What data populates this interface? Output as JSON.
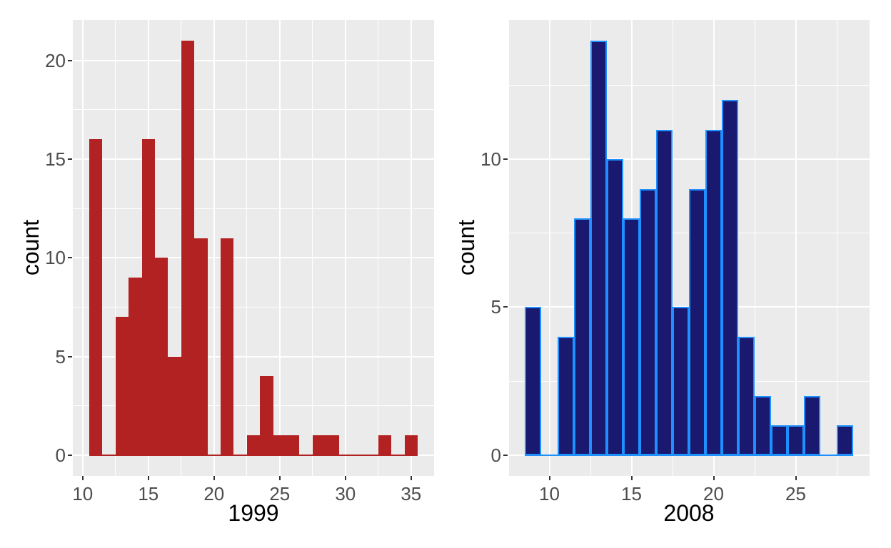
{
  "figure": {
    "background": "#FFFFFF",
    "panel_background": "#EBEBEB",
    "grid_color": "#FFFFFF",
    "tick_mark_color": "#333333",
    "tick_label_color": "#4D4D4D",
    "axis_title_color": "#000000"
  },
  "chart_data": [
    {
      "type": "bar",
      "subtype": "histogram",
      "title": "",
      "xlabel": "1999",
      "ylabel": "count",
      "bar_fill": "#B22222",
      "bar_stroke": null,
      "binwidth": 1,
      "bin_centers": [
        11,
        12,
        13,
        14,
        15,
        16,
        17,
        18,
        19,
        20,
        21,
        22,
        23,
        24,
        25,
        26,
        27,
        28,
        29,
        30,
        31,
        32,
        33,
        34,
        35
      ],
      "counts": [
        16,
        0,
        7,
        9,
        16,
        10,
        5,
        21,
        11,
        0,
        11,
        0,
        1,
        4,
        1,
        1,
        0,
        1,
        1,
        0,
        0,
        0,
        1,
        0,
        1
      ],
      "x_ticks": [
        10,
        15,
        20,
        25,
        30,
        35
      ],
      "x_minor_ticks": [
        12.5,
        17.5,
        22.5,
        27.5,
        32.5
      ],
      "y_ticks": [
        0,
        5,
        10,
        15,
        20
      ],
      "y_minor_ticks": [
        2.5,
        7.5,
        12.5,
        17.5
      ],
      "xlim": [
        9.25,
        36.75
      ],
      "ylim": [
        -1.05,
        22.05
      ],
      "grid": true,
      "legend": "none"
    },
    {
      "type": "bar",
      "subtype": "histogram",
      "title": "",
      "xlabel": "2008",
      "ylabel": "count",
      "bar_fill": "#191970",
      "bar_stroke": "#1E90FF",
      "binwidth": 1,
      "bin_centers": [
        9,
        10,
        11,
        12,
        13,
        14,
        15,
        16,
        17,
        18,
        19,
        20,
        21,
        22,
        23,
        24,
        25,
        26,
        27,
        28
      ],
      "counts": [
        5,
        0,
        4,
        8,
        14,
        10,
        8,
        9,
        11,
        5,
        9,
        11,
        12,
        4,
        2,
        1,
        1,
        2,
        0,
        1
      ],
      "x_ticks": [
        10,
        15,
        20,
        25
      ],
      "x_minor_ticks": [
        7.5,
        12.5,
        17.5,
        22.5,
        27.5
      ],
      "y_ticks": [
        0,
        5,
        10
      ],
      "y_minor_ticks": [
        2.5,
        7.5,
        12.5
      ],
      "xlim": [
        7.5,
        29.5
      ],
      "ylim": [
        -0.7,
        14.7
      ],
      "grid": true,
      "legend": "none"
    }
  ]
}
